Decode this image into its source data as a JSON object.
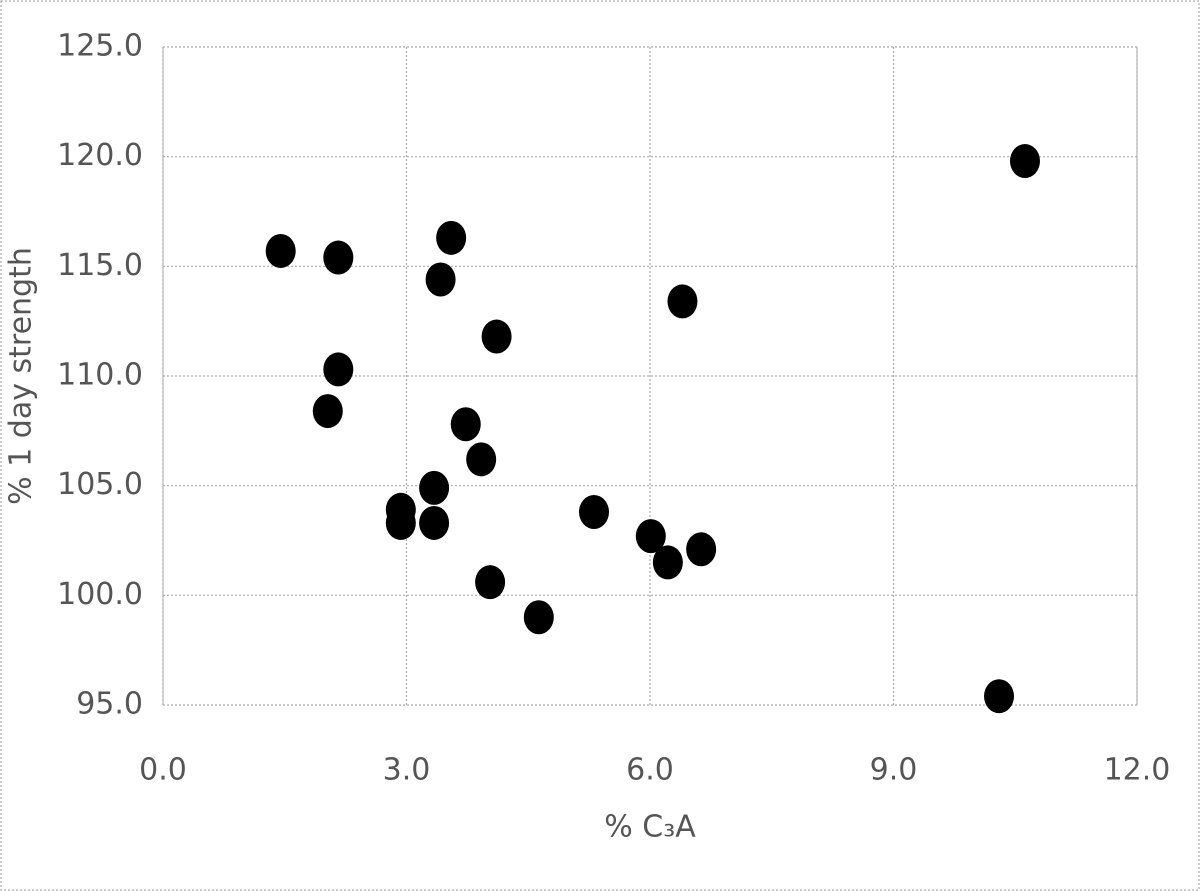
{
  "chart_data": {
    "type": "scatter",
    "x_label": "% C₃A",
    "y_label": "% 1 day strength",
    "color": "#000000",
    "grid": true,
    "xlim": [
      0,
      12
    ],
    "ylim": [
      95,
      125
    ],
    "xticks": [
      {
        "value": 0,
        "label": "0.0"
      },
      {
        "value": 3,
        "label": "3.0"
      },
      {
        "value": 6,
        "label": "6.0"
      },
      {
        "value": 9,
        "label": "9.0"
      },
      {
        "value": 12,
        "label": "12.0"
      }
    ],
    "yticks": [
      {
        "value": 95,
        "label": "95.0"
      },
      {
        "value": 100,
        "label": "100.0"
      },
      {
        "value": 105,
        "label": "105.0"
      },
      {
        "value": 110,
        "label": "110.0"
      },
      {
        "value": 115,
        "label": "115.0"
      },
      {
        "value": 120,
        "label": "120.0"
      },
      {
        "value": 125,
        "label": "125.0"
      }
    ],
    "x": [
      1.45,
      2.16,
      3.55,
      3.42,
      10.62,
      6.4,
      4.11,
      2.16,
      2.03,
      3.73,
      3.92,
      3.34,
      2.93,
      2.93,
      3.34,
      5.31,
      6.01,
      6.22,
      6.63,
      4.03,
      4.63,
      10.3
    ],
    "values": [
      115.7,
      115.4,
      116.3,
      114.4,
      119.8,
      113.4,
      111.8,
      110.3,
      108.4,
      107.8,
      106.2,
      104.9,
      103.9,
      103.3,
      103.3,
      103.8,
      102.7,
      101.5,
      102.1,
      100.6,
      99.0,
      95.4
    ]
  }
}
